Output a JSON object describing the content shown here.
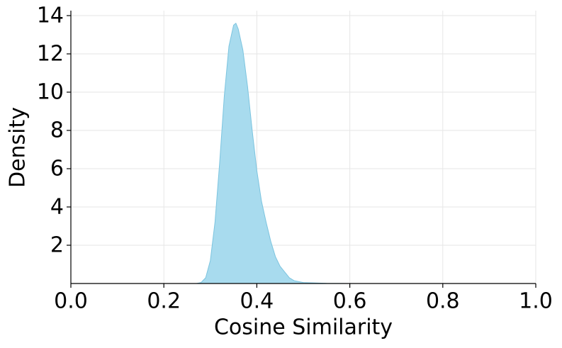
{
  "chart_data": {
    "type": "area",
    "x_label": "Cosine Similarity",
    "y_label": "Density",
    "x": [
      0.27,
      0.28,
      0.29,
      0.3,
      0.31,
      0.32,
      0.33,
      0.34,
      0.35,
      0.355,
      0.36,
      0.37,
      0.38,
      0.39,
      0.4,
      0.41,
      0.42,
      0.43,
      0.44,
      0.45,
      0.46,
      0.47,
      0.48,
      0.5,
      0.55,
      0.6
    ],
    "values": [
      0,
      0.05,
      0.3,
      1.2,
      3.2,
      6.3,
      9.8,
      12.4,
      13.5,
      13.6,
      13.3,
      12.2,
      10.3,
      8.0,
      5.9,
      4.3,
      3.2,
      2.2,
      1.4,
      0.9,
      0.6,
      0.3,
      0.15,
      0.05,
      0.01,
      0
    ],
    "color": "#a8dbee",
    "edge_color": "#7cc4df",
    "xlim": [
      0,
      1
    ],
    "xticks": [
      {
        "value": 0,
        "label": "0.0"
      },
      {
        "value": 0.2,
        "label": "0.2"
      },
      {
        "value": 0.4,
        "label": "0.4"
      },
      {
        "value": 0.6,
        "label": "0.6"
      },
      {
        "value": 0.8,
        "label": "0.8"
      },
      {
        "value": 1,
        "label": "1.0"
      }
    ],
    "ylim": [
      0,
      14.26
    ],
    "yticks": [
      2,
      4,
      6,
      8,
      10,
      12,
      14
    ],
    "grid": true
  }
}
